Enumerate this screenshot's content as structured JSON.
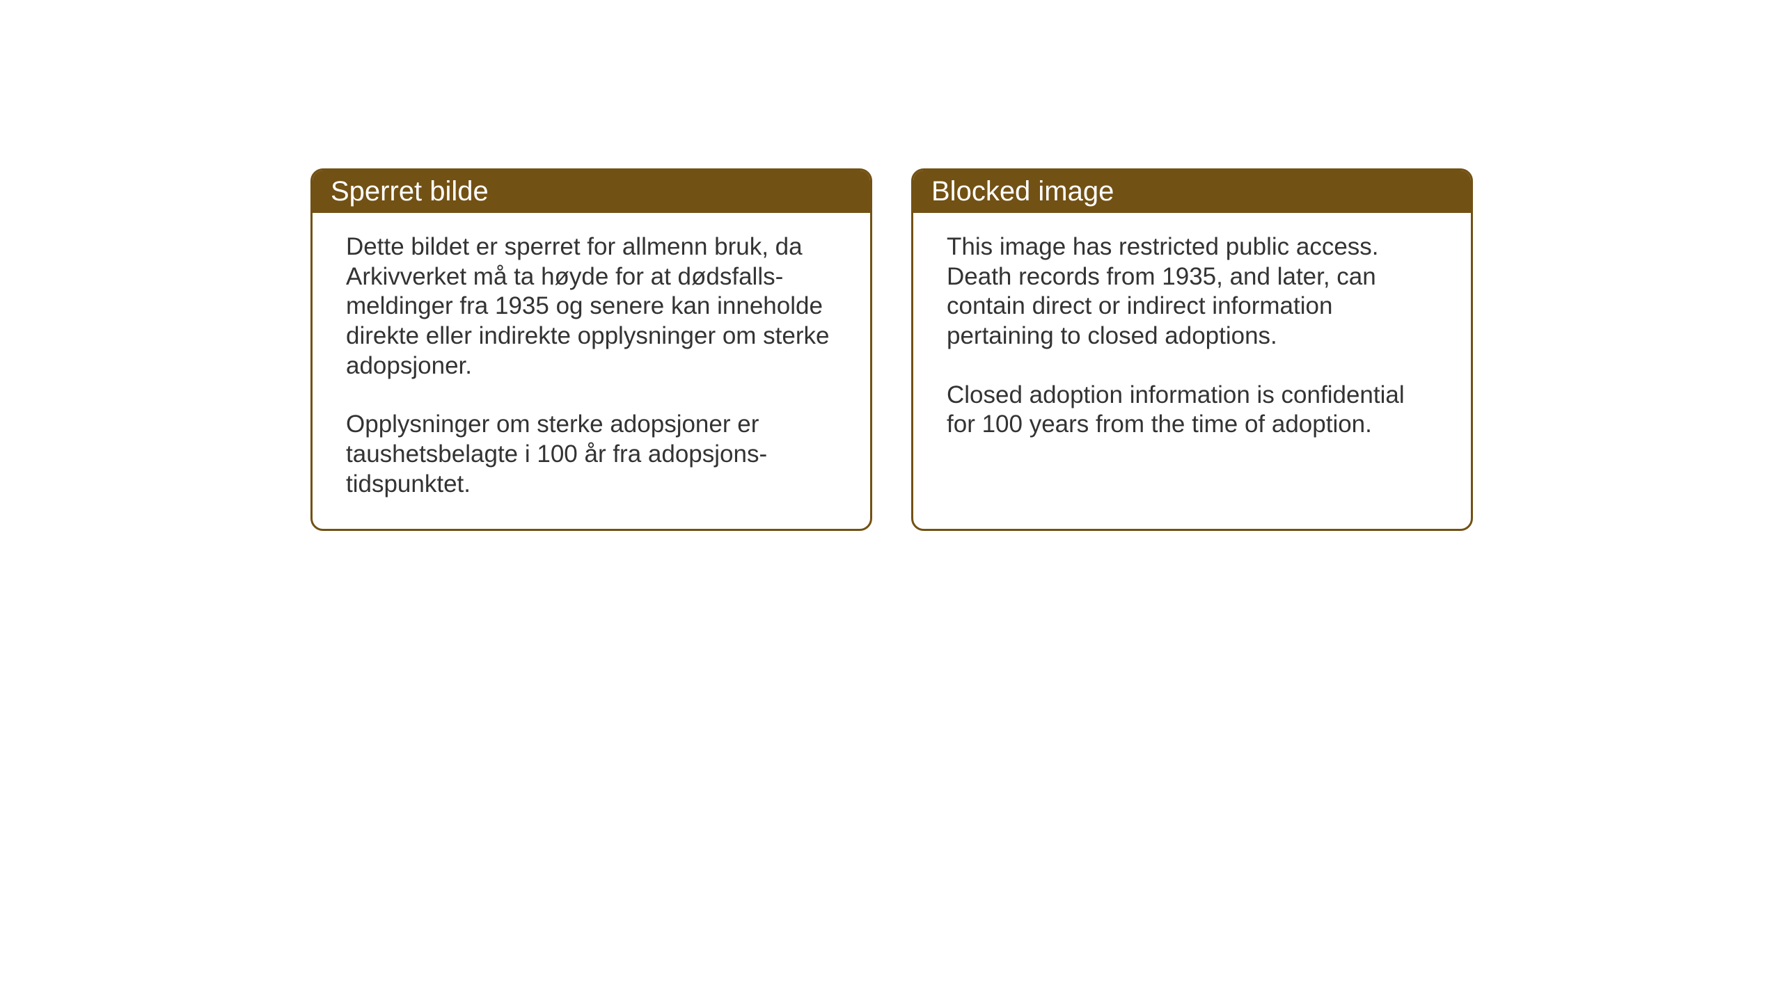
{
  "layout": {
    "background_color": "#ffffff",
    "card_border_color": "#725114",
    "card_header_bg_color": "#725114",
    "card_header_text_color": "#ffffff",
    "card_body_text_color": "#333333",
    "card_border_radius": 18,
    "card_border_width": 3,
    "header_font_size": 40,
    "body_font_size": 35,
    "gap_between_cards": 56
  },
  "cards": {
    "norwegian": {
      "title": "Sperret bilde",
      "paragraph1": "Dette bildet er sperret for allmenn bruk, da Arkivverket må ta høyde for at dødsfalls-meldinger fra 1935 og senere kan inneholde direkte eller indirekte opplysninger om sterke adopsjoner.",
      "paragraph2": "Opplysninger om sterke adopsjoner er taushetsbelagte i 100 år fra adopsjons-tidspunktet."
    },
    "english": {
      "title": "Blocked image",
      "paragraph1": "This image has restricted public access. Death records from 1935, and later, can contain direct or indirect information pertaining to closed adoptions.",
      "paragraph2": "Closed adoption information is confidential for 100 years from the time of adoption."
    }
  }
}
